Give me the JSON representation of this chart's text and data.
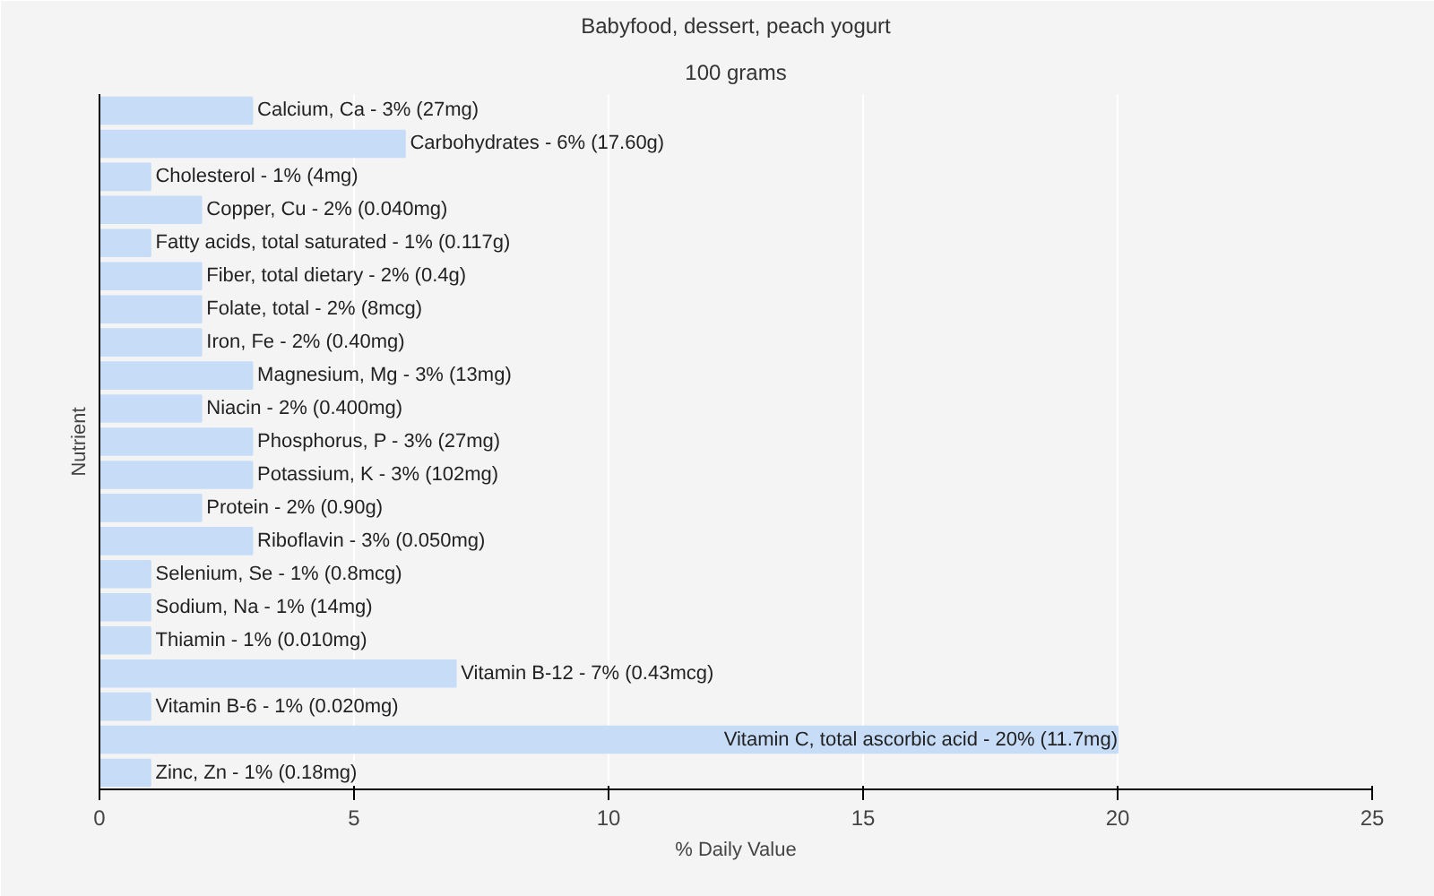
{
  "chart_data": {
    "type": "bar",
    "orientation": "horizontal",
    "title": "Babyfood, dessert, peach yogurt",
    "subtitle": "100 grams",
    "xlabel": "% Daily Value",
    "ylabel": "Nutrient",
    "categories": [
      "Calcium, Ca - 3% (27mg)",
      "Carbohydrates - 6% (17.60g)",
      "Cholesterol - 1% (4mg)",
      "Copper, Cu - 2% (0.040mg)",
      "Fatty acids, total saturated - 1% (0.117g)",
      "Fiber, total dietary - 2% (0.4g)",
      "Folate, total - 2% (8mcg)",
      "Iron, Fe - 2% (0.40mg)",
      "Magnesium, Mg - 3% (13mg)",
      "Niacin - 2% (0.400mg)",
      "Phosphorus, P - 3% (27mg)",
      "Potassium, K - 3% (102mg)",
      "Protein - 2% (0.90g)",
      "Riboflavin - 3% (0.050mg)",
      "Selenium, Se - 1% (0.8mcg)",
      "Sodium, Na - 1% (14mg)",
      "Thiamin - 1% (0.010mg)",
      "Vitamin B-12 - 7% (0.43mcg)",
      "Vitamin B-6 - 1% (0.020mg)",
      "Vitamin C, total ascorbic acid - 20% (11.7mg)",
      "Zinc, Zn - 1% (0.18mg)"
    ],
    "values": [
      3,
      6,
      1,
      2,
      1,
      2,
      2,
      2,
      3,
      2,
      3,
      3,
      2,
      3,
      1,
      1,
      1,
      7,
      1,
      20,
      1
    ],
    "color": "#c6dcf7",
    "xlim": [
      0,
      25
    ],
    "xticks": [
      0,
      5,
      10,
      15,
      20,
      25
    ],
    "grid": "x"
  }
}
